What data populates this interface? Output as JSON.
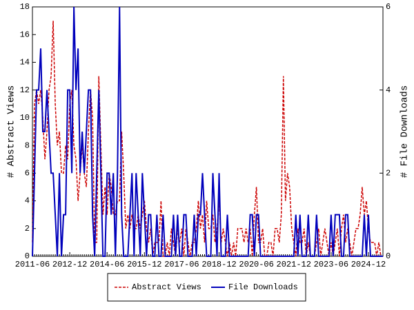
{
  "chart_data": {
    "type": "line",
    "categories": [
      "2011-06",
      null,
      null,
      null,
      null,
      null,
      null,
      null,
      null,
      null,
      null,
      null,
      null,
      null,
      null,
      null,
      null,
      null,
      "2012-12",
      null,
      null,
      null,
      null,
      null,
      null,
      null,
      null,
      null,
      null,
      null,
      null,
      null,
      null,
      null,
      null,
      null,
      "2014-06",
      null,
      null,
      null,
      null,
      null,
      null,
      null,
      null,
      null,
      null,
      null,
      null,
      null,
      null,
      null,
      null,
      null,
      "2015-12",
      null,
      null,
      null,
      null,
      null,
      null,
      null,
      null,
      null,
      null,
      null,
      null,
      null,
      null,
      null,
      null,
      null,
      "2017-06",
      null,
      null,
      null,
      null,
      null,
      null,
      null,
      null,
      null,
      null,
      null,
      null,
      null,
      null,
      null,
      null,
      null,
      "2018-12",
      null,
      null,
      null,
      null,
      null,
      null,
      null,
      null,
      null,
      null,
      null,
      null,
      null,
      null,
      null,
      null,
      null,
      "2020-06",
      null,
      null,
      null,
      null,
      null,
      null,
      null,
      null,
      null,
      null,
      null,
      null,
      null,
      null,
      null,
      null,
      null,
      "2021-12",
      null,
      null,
      null,
      null,
      null,
      null,
      null,
      null,
      null,
      null,
      null,
      null,
      null,
      null,
      null,
      null,
      null,
      "2023-06",
      null,
      null,
      null,
      null,
      null,
      null,
      null,
      null,
      null,
      null,
      null,
      null,
      null,
      null,
      null,
      null,
      null,
      "2024-12",
      null,
      null,
      null,
      null,
      null,
      null,
      null
    ],
    "series": [
      {
        "name": "Abstract Views",
        "color": "#cc0000",
        "axis": "y",
        "values": [
          1,
          11,
          12,
          11,
          12,
          10,
          7,
          9,
          12,
          13,
          17,
          11,
          8,
          9,
          6,
          6,
          8,
          7,
          11,
          12,
          8,
          7,
          4,
          6,
          8,
          6,
          5,
          9,
          12,
          10,
          1,
          1,
          13,
          8,
          3,
          5,
          3,
          6,
          5,
          3,
          3,
          4,
          4,
          9,
          6,
          2,
          3,
          2,
          3,
          2,
          2,
          3,
          2,
          3,
          4,
          2,
          1,
          2,
          0,
          1,
          1,
          1,
          4,
          0,
          0,
          1,
          0,
          2,
          1,
          0,
          2,
          1,
          2,
          0,
          2,
          1,
          0,
          1,
          1,
          2,
          4,
          2,
          3,
          1,
          4,
          2,
          2,
          3,
          1,
          2,
          4,
          1,
          2,
          1,
          0,
          1,
          0,
          1,
          0,
          2,
          2,
          2,
          1,
          2,
          1,
          2,
          0,
          3,
          5,
          1,
          1,
          2,
          0,
          0,
          1,
          1,
          0,
          2,
          2,
          1,
          3,
          13,
          4,
          6,
          5,
          2,
          1,
          0,
          2,
          1,
          1,
          2,
          0,
          1,
          0,
          0,
          0,
          1,
          2,
          0,
          1,
          2,
          1,
          0,
          1,
          0,
          1,
          2,
          0,
          2,
          3,
          1,
          2,
          1,
          0,
          1,
          2,
          2,
          3,
          5,
          3,
          4,
          2,
          1,
          1,
          1,
          0,
          1,
          0,
          0
        ]
      },
      {
        "name": "File Downloads",
        "color": "#0000bb",
        "axis": "y2",
        "values": [
          0,
          2,
          4,
          4,
          5,
          3,
          3,
          4,
          3,
          2,
          2,
          1,
          0,
          2,
          0,
          1,
          1,
          4,
          4,
          2,
          6,
          4,
          5,
          2,
          3,
          2,
          3,
          4,
          4,
          1,
          0,
          2,
          4,
          2,
          0,
          0,
          2,
          2,
          1,
          2,
          0,
          2,
          6,
          1,
          0,
          0,
          0,
          1,
          2,
          0,
          2,
          1,
          0,
          2,
          1,
          0,
          1,
          1,
          0,
          0,
          1,
          0,
          0,
          1,
          0,
          0,
          0,
          0,
          1,
          0,
          1,
          0,
          0,
          1,
          1,
          0,
          0,
          0,
          1,
          0,
          1,
          1,
          2,
          1,
          0,
          0,
          0,
          2,
          1,
          0,
          2,
          0,
          0,
          0,
          1,
          0,
          0,
          0,
          0,
          0,
          0,
          0,
          0,
          0,
          0,
          1,
          1,
          0,
          1,
          1,
          0,
          0,
          0,
          0,
          0,
          0,
          0,
          0,
          0,
          0,
          0,
          0,
          0,
          0,
          0,
          0,
          0,
          1,
          0,
          1,
          0,
          0,
          0,
          1,
          0,
          0,
          0,
          1,
          0,
          0,
          0,
          0,
          0,
          0,
          1,
          0,
          1,
          1,
          1,
          0,
          0,
          1,
          1,
          0,
          0,
          0,
          0,
          0,
          0,
          0,
          1,
          0,
          1,
          0,
          0,
          0,
          0,
          0,
          0,
          0
        ]
      }
    ],
    "ylabel": "# Abstract Views",
    "y2label": "# File Downloads",
    "ylim": [
      0,
      18
    ],
    "yticks": [
      0,
      2,
      4,
      6,
      8,
      10,
      12,
      14,
      16,
      18
    ],
    "y2lim": [
      0,
      6
    ],
    "y2ticks": [
      0,
      2,
      4,
      6
    ]
  }
}
